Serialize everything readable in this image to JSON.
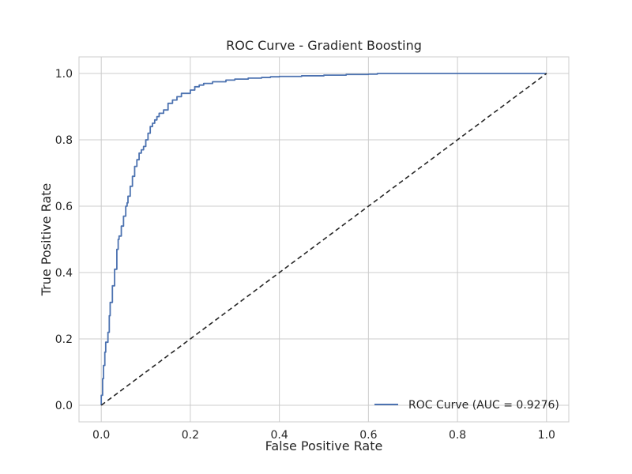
{
  "chart_data": {
    "type": "line",
    "title": "ROC Curve - Gradient Boosting",
    "xlabel": "False Positive Rate",
    "ylabel": "True Positive Rate",
    "xlim": [
      -0.05,
      1.05
    ],
    "ylim": [
      -0.05,
      1.05
    ],
    "grid": true,
    "legend": "bottom-right",
    "xticks": [
      0.0,
      0.2,
      0.4,
      0.6,
      0.8,
      1.0
    ],
    "yticks": [
      0.0,
      0.2,
      0.4,
      0.6,
      0.8,
      1.0
    ],
    "xtick_labels": [
      "0.0",
      "0.2",
      "0.4",
      "0.6",
      "0.8",
      "1.0"
    ],
    "ytick_labels": [
      "0.0",
      "0.2",
      "0.4",
      "0.6",
      "0.8",
      "1.0"
    ],
    "series": [
      {
        "name": "ROC Curve (AUC = 0.9276)",
        "color": "#4c72b0",
        "style": "solid",
        "x": [
          0.0,
          0.0,
          0.003,
          0.005,
          0.008,
          0.01,
          0.015,
          0.018,
          0.02,
          0.025,
          0.03,
          0.035,
          0.038,
          0.04,
          0.045,
          0.05,
          0.055,
          0.058,
          0.06,
          0.065,
          0.07,
          0.075,
          0.08,
          0.085,
          0.09,
          0.095,
          0.1,
          0.105,
          0.11,
          0.115,
          0.12,
          0.125,
          0.13,
          0.14,
          0.15,
          0.16,
          0.17,
          0.18,
          0.19,
          0.2,
          0.21,
          0.22,
          0.23,
          0.25,
          0.28,
          0.3,
          0.33,
          0.36,
          0.38,
          0.4,
          0.45,
          0.5,
          0.55,
          0.6,
          0.62,
          0.7,
          0.8,
          0.9,
          1.0
        ],
        "y": [
          0.0,
          0.03,
          0.08,
          0.12,
          0.16,
          0.19,
          0.22,
          0.27,
          0.31,
          0.36,
          0.41,
          0.47,
          0.5,
          0.51,
          0.54,
          0.57,
          0.6,
          0.61,
          0.63,
          0.66,
          0.69,
          0.72,
          0.74,
          0.76,
          0.77,
          0.78,
          0.8,
          0.82,
          0.84,
          0.85,
          0.86,
          0.87,
          0.88,
          0.89,
          0.91,
          0.92,
          0.93,
          0.94,
          0.94,
          0.95,
          0.96,
          0.965,
          0.97,
          0.975,
          0.98,
          0.983,
          0.986,
          0.988,
          0.99,
          0.991,
          0.993,
          0.995,
          0.997,
          0.998,
          1.0,
          1.0,
          1.0,
          1.0,
          1.0
        ]
      },
      {
        "color": "#262626",
        "style": "dashed",
        "x": [
          0.0,
          1.0
        ],
        "y": [
          0.0,
          1.0
        ]
      }
    ]
  }
}
